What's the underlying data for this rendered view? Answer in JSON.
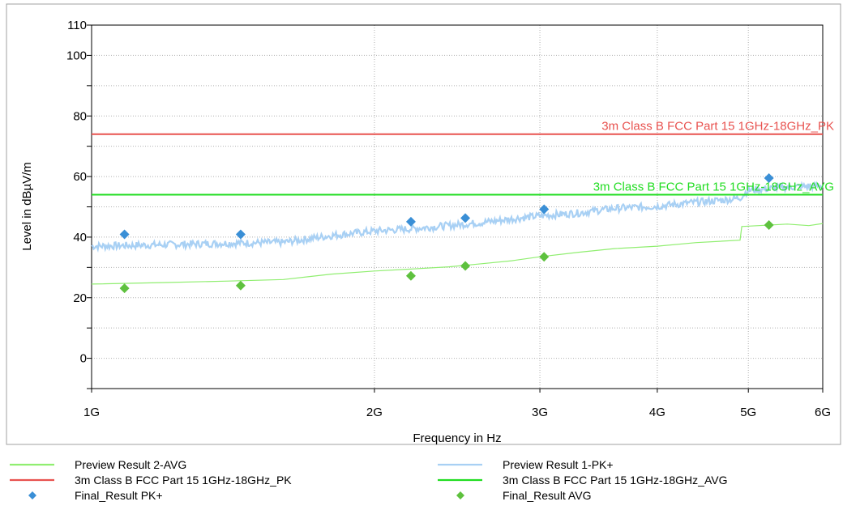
{
  "chart_data": {
    "type": "line",
    "title": "",
    "xlabel": "Frequency in Hz",
    "ylabel": "Level in dBµV/m",
    "x_scale": "log",
    "xlim": [
      1000000000.0,
      6000000000.0
    ],
    "ylim": [
      -10,
      110
    ],
    "x_ticks": [
      {
        "value": 1000000000.0,
        "label": "1G"
      },
      {
        "value": 2000000000.0,
        "label": "2G"
      },
      {
        "value": 3000000000.0,
        "label": "3G"
      },
      {
        "value": 4000000000.0,
        "label": "4G"
      },
      {
        "value": 5000000000.0,
        "label": "5G"
      },
      {
        "value": 6000000000.0,
        "label": "6G"
      }
    ],
    "y_ticks": [
      {
        "value": 0,
        "label": "0"
      },
      {
        "value": 20,
        "label": "20"
      },
      {
        "value": 40,
        "label": "40"
      },
      {
        "value": 60,
        "label": "60"
      },
      {
        "value": 80,
        "label": "80"
      },
      {
        "value": 100,
        "label": "100"
      },
      {
        "value": 110,
        "label": "110"
      }
    ],
    "y_minor_gridlines": [
      -10,
      10,
      30,
      50,
      70,
      90
    ],
    "grid": true,
    "limit_lines": [
      {
        "name": "3m Class B FCC Part 15 1GHz-18GHz_PK",
        "value": 74,
        "color": "#e8524f"
      },
      {
        "name": "3m Class B FCC Part 15 1GHz-18GHz_AVG",
        "value": 54,
        "color": "#22dd22"
      }
    ],
    "series": [
      {
        "name": "Preview Result 2-AVG",
        "style": "line",
        "color": "#90ee70",
        "x": [
          1000000000.0,
          1200000000.0,
          1400000000.0,
          1600000000.0,
          1800000000.0,
          2000000000.0,
          2200000000.0,
          2400000000.0,
          2600000000.0,
          2800000000.0,
          3000000000.0,
          3300000000.0,
          3600000000.0,
          4000000000.0,
          4400000000.0,
          4900000000.0,
          4920000000.0,
          5500000000.0,
          5800000000.0,
          6000000000.0
        ],
        "y": [
          24.5,
          25,
          25.5,
          26,
          27.8,
          28.8,
          29.5,
          30.2,
          31.2,
          32.2,
          33.5,
          35,
          36.2,
          37,
          38.2,
          39,
          43.5,
          44.3,
          43.8,
          44.5
        ]
      },
      {
        "name": "Preview Result 1-PK+",
        "style": "line",
        "color": "#a8d0f4",
        "x": [
          1000000000.0,
          1200000000.0,
          1400000000.0,
          1600000000.0,
          1800000000.0,
          2000000000.0,
          2200000000.0,
          2400000000.0,
          2600000000.0,
          2800000000.0,
          3000000000.0,
          3300000000.0,
          3600000000.0,
          4000000000.0,
          4400000000.0,
          4800000000.0,
          4900000000.0,
          5000000000.0,
          5500000000.0,
          6000000000.0
        ],
        "y": [
          37,
          37.5,
          38,
          38.3,
          40.5,
          42,
          42.8,
          43.8,
          44.8,
          46,
          47,
          48,
          49.5,
          50.2,
          51.5,
          52.5,
          53,
          55.5,
          56.5,
          57
        ]
      },
      {
        "name": "Final_Result PK+",
        "style": "marker",
        "color": "#3a8fd6",
        "x": [
          1084000000.0,
          1441000000.0,
          2187000000.0,
          2499000000.0,
          3031000000.0,
          5259000000.0
        ],
        "y": [
          40.9,
          40.9,
          45.1,
          46.3,
          49.2,
          59.5
        ]
      },
      {
        "name": "Final_Result AVG",
        "style": "marker",
        "color": "#5ec13e",
        "x": [
          1084000000.0,
          1441000000.0,
          2187000000.0,
          2499000000.0,
          3031000000.0,
          5259000000.0
        ],
        "y": [
          23.1,
          24.0,
          27.2,
          30.5,
          33.5,
          44.0
        ]
      }
    ],
    "legend": {
      "placement": "bottom",
      "entries": [
        {
          "label": "Preview Result 2-AVG",
          "kind": "line",
          "color": "#90ee70"
        },
        {
          "label": "Preview Result 1-PK+",
          "kind": "line",
          "color": "#a8d0f4"
        },
        {
          "label": "3m Class B FCC Part 15 1GHz-18GHz_PK",
          "kind": "line",
          "color": "#e8524f"
        },
        {
          "label": "3m Class B FCC Part 15 1GHz-18GHz_AVG",
          "kind": "line",
          "color": "#22dd22"
        },
        {
          "label": "Final_Result PK+",
          "kind": "marker",
          "color": "#3a8fd6"
        },
        {
          "label": "Final_Result AVG",
          "kind": "marker",
          "color": "#5ec13e"
        }
      ]
    }
  }
}
